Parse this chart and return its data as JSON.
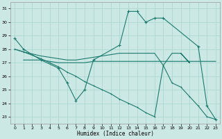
{
  "background_color": "#cce8e4",
  "grid_color": "#a8d4cf",
  "line_color": "#1a7a6e",
  "marker": "+",
  "xlabel": "Humidex (Indice chaleur)",
  "ylim": [
    22.5,
    31.5
  ],
  "xlim": [
    -0.5,
    23.5
  ],
  "yticks": [
    23,
    24,
    25,
    26,
    27,
    28,
    29,
    30,
    31
  ],
  "xticks": [
    0,
    1,
    2,
    3,
    4,
    5,
    6,
    7,
    8,
    9,
    10,
    11,
    12,
    13,
    14,
    15,
    16,
    17,
    18,
    19,
    20,
    21,
    22,
    23
  ],
  "series": [
    {
      "x": [
        0,
        1,
        3,
        5,
        6,
        7,
        8,
        9,
        12,
        13,
        14,
        15,
        16,
        17,
        21,
        22,
        23
      ],
      "y": [
        28.8,
        28.0,
        27.2,
        26.6,
        25.5,
        24.2,
        25.0,
        27.2,
        28.3,
        30.8,
        30.8,
        30.0,
        30.3,
        30.3,
        28.2,
        23.8,
        22.8
      ]
    },
    {
      "x": [
        1,
        3,
        4,
        5,
        6,
        7,
        8,
        9,
        10,
        11,
        12,
        13,
        14,
        15,
        16,
        17,
        18,
        19,
        20,
        21,
        22,
        23
      ],
      "y": [
        27.2,
        27.2,
        27.1,
        27.0,
        27.0,
        27.0,
        27.0,
        27.1,
        27.1,
        27.1,
        27.1,
        27.1,
        27.1,
        27.1,
        27.1,
        27.1,
        27.1,
        27.1,
        27.1,
        27.1,
        27.1,
        27.1
      ]
    },
    {
      "x": [
        0,
        1,
        3,
        4,
        5,
        6,
        7,
        8,
        9,
        10,
        11,
        12,
        13,
        14,
        15,
        16,
        17,
        18,
        19,
        20,
        19,
        20
      ],
      "y": [
        28.0,
        27.8,
        27.5,
        27.4,
        27.3,
        27.2,
        27.2,
        27.3,
        27.4,
        27.5,
        27.6,
        27.7,
        27.7,
        27.7,
        27.7,
        27.7,
        26.8,
        27.7,
        27.7,
        27.0,
        27.7,
        27.0
      ]
    },
    {
      "x": [
        0,
        1,
        3,
        4,
        5,
        6,
        7,
        8,
        9,
        10,
        11,
        12,
        13,
        14,
        15,
        16,
        17,
        18,
        19,
        20,
        21,
        22,
        23
      ],
      "y": [
        28.0,
        27.8,
        27.3,
        27.0,
        26.7,
        26.3,
        26.0,
        25.6,
        25.3,
        25.0,
        24.7,
        24.3,
        24.0,
        23.7,
        23.3,
        23.0,
        26.8,
        25.5,
        25.2,
        24.5,
        23.8,
        23.0,
        22.8
      ]
    }
  ]
}
